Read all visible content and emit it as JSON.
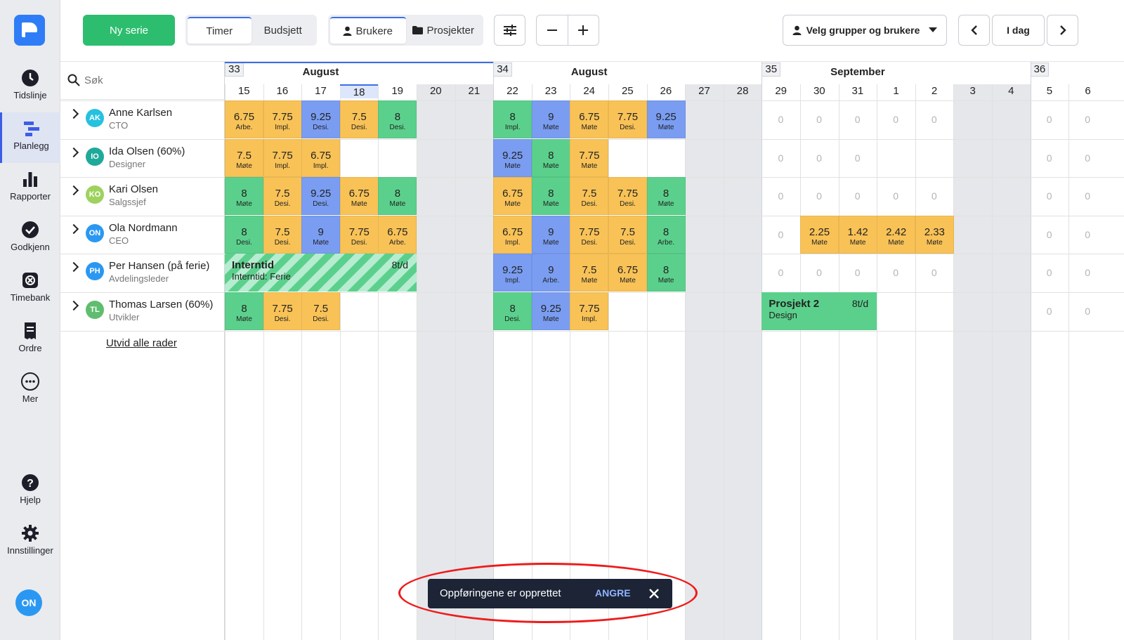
{
  "sidebar": {
    "items": [
      {
        "label": "Tidslinje",
        "icon": "clock-icon",
        "active": false
      },
      {
        "label": "Planlegg",
        "icon": "planner-icon",
        "active": true
      },
      {
        "label": "Rapporter",
        "icon": "bar-chart-icon",
        "active": false
      },
      {
        "label": "Godkjenn",
        "icon": "checkmark-icon",
        "active": false
      },
      {
        "label": "Timebank",
        "icon": "timebank-icon",
        "active": false
      },
      {
        "label": "Ordre",
        "icon": "receipt-icon",
        "active": false
      },
      {
        "label": "Mer",
        "icon": "more-icon",
        "active": false
      }
    ],
    "bottom": [
      {
        "label": "Hjelp",
        "icon": "help-icon"
      },
      {
        "label": "Innstillinger",
        "icon": "gear-icon"
      }
    ],
    "user_initials": "ON"
  },
  "toolbar": {
    "new_series": "Ny serie",
    "view_toggle": [
      {
        "label": "Timer",
        "selected": true
      },
      {
        "label": "Budsjett",
        "selected": false
      }
    ],
    "mode_toggle": [
      {
        "label": "Brukere",
        "selected": true
      },
      {
        "label": "Prosjekter",
        "selected": false
      }
    ],
    "groups_select": "Velg grupper og brukere",
    "today": "I dag"
  },
  "search": {
    "placeholder": "Søk"
  },
  "timeline": {
    "weeks": [
      {
        "number": "33",
        "month": "August"
      },
      {
        "number": "34",
        "month": "August"
      },
      {
        "number": "35",
        "month": "September"
      },
      {
        "number": "36",
        "month": ""
      }
    ],
    "days": [
      "15",
      "16",
      "17",
      "18",
      "19",
      "20",
      "21",
      "22",
      "23",
      "24",
      "25",
      "26",
      "27",
      "28",
      "29",
      "30",
      "31",
      "1",
      "2",
      "3",
      "4",
      "5",
      "6"
    ],
    "weekend_indices": [
      5,
      6,
      12,
      13,
      19,
      20
    ],
    "today_index": 3
  },
  "colors": {
    "yellow": "#f8c257",
    "green": "#5bd08c",
    "blue": "#7a9df2",
    "accent": "#3c6fe6",
    "primary_button": "#2dbd6e"
  },
  "people": [
    {
      "initials": "AK",
      "name": "Anne Karlsen",
      "role": "CTO",
      "avatar_color": "#26c1df"
    },
    {
      "initials": "IO",
      "name": "Ida Olsen (60%)",
      "role": "Designer",
      "avatar_color": "#1fa99b"
    },
    {
      "initials": "KO",
      "name": "Kari Olsen",
      "role": "Salgssjef",
      "avatar_color": "#9ed25e"
    },
    {
      "initials": "ON",
      "name": "Ola Nordmann",
      "role": "CEO",
      "avatar_color": "#2a98f2"
    },
    {
      "initials": "PH",
      "name": "Per Hansen (på ferie)",
      "role": "Avdelingsleder",
      "avatar_color": "#2a98f2"
    },
    {
      "initials": "TL",
      "name": "Thomas Larsen (60%)",
      "role": "Utvikler",
      "avatar_color": "#5fbd6f"
    }
  ],
  "expand_all": "Utvid alle rader",
  "entries": [
    {
      "row": 0,
      "day": 0,
      "hours": "6.75",
      "task": "Arbe.",
      "color": "yellow"
    },
    {
      "row": 0,
      "day": 1,
      "hours": "7.75",
      "task": "Impl.",
      "color": "yellow"
    },
    {
      "row": 0,
      "day": 2,
      "hours": "9.25",
      "task": "Desi.",
      "color": "blue"
    },
    {
      "row": 0,
      "day": 3,
      "hours": "7.5",
      "task": "Desi.",
      "color": "yellow"
    },
    {
      "row": 0,
      "day": 4,
      "hours": "8",
      "task": "Desi.",
      "color": "green"
    },
    {
      "row": 0,
      "day": 7,
      "hours": "8",
      "task": "Impl.",
      "color": "green"
    },
    {
      "row": 0,
      "day": 8,
      "hours": "9",
      "task": "Møte",
      "color": "blue"
    },
    {
      "row": 0,
      "day": 9,
      "hours": "6.75",
      "task": "Møte",
      "color": "yellow"
    },
    {
      "row": 0,
      "day": 10,
      "hours": "7.75",
      "task": "Desi.",
      "color": "yellow"
    },
    {
      "row": 0,
      "day": 11,
      "hours": "9.25",
      "task": "Møte",
      "color": "blue"
    },
    {
      "row": 1,
      "day": 0,
      "hours": "7.5",
      "task": "Møte",
      "color": "yellow"
    },
    {
      "row": 1,
      "day": 1,
      "hours": "7.75",
      "task": "Impl.",
      "color": "yellow"
    },
    {
      "row": 1,
      "day": 2,
      "hours": "6.75",
      "task": "Impl.",
      "color": "yellow"
    },
    {
      "row": 1,
      "day": 7,
      "hours": "9.25",
      "task": "Møte",
      "color": "blue"
    },
    {
      "row": 1,
      "day": 8,
      "hours": "8",
      "task": "Møte",
      "color": "green"
    },
    {
      "row": 1,
      "day": 9,
      "hours": "7.75",
      "task": "Møte",
      "color": "yellow"
    },
    {
      "row": 2,
      "day": 0,
      "hours": "8",
      "task": "Møte",
      "color": "green"
    },
    {
      "row": 2,
      "day": 1,
      "hours": "7.5",
      "task": "Desi.",
      "color": "yellow"
    },
    {
      "row": 2,
      "day": 2,
      "hours": "9.25",
      "task": "Desi.",
      "color": "blue"
    },
    {
      "row": 2,
      "day": 3,
      "hours": "6.75",
      "task": "Møte",
      "color": "yellow"
    },
    {
      "row": 2,
      "day": 4,
      "hours": "8",
      "task": "Møte",
      "color": "green"
    },
    {
      "row": 2,
      "day": 7,
      "hours": "6.75",
      "task": "Møte",
      "color": "yellow"
    },
    {
      "row": 2,
      "day": 8,
      "hours": "8",
      "task": "Møte",
      "color": "green"
    },
    {
      "row": 2,
      "day": 9,
      "hours": "7.5",
      "task": "Desi.",
      "color": "yellow"
    },
    {
      "row": 2,
      "day": 10,
      "hours": "7.75",
      "task": "Desi.",
      "color": "yellow"
    },
    {
      "row": 2,
      "day": 11,
      "hours": "8",
      "task": "Møte",
      "color": "green"
    },
    {
      "row": 3,
      "day": 0,
      "hours": "8",
      "task": "Desi.",
      "color": "green"
    },
    {
      "row": 3,
      "day": 1,
      "hours": "7.5",
      "task": "Desi.",
      "color": "yellow"
    },
    {
      "row": 3,
      "day": 2,
      "hours": "9",
      "task": "Møte",
      "color": "blue"
    },
    {
      "row": 3,
      "day": 3,
      "hours": "7.75",
      "task": "Desi.",
      "color": "yellow"
    },
    {
      "row": 3,
      "day": 4,
      "hours": "6.75",
      "task": "Arbe.",
      "color": "yellow"
    },
    {
      "row": 3,
      "day": 7,
      "hours": "6.75",
      "task": "Impl.",
      "color": "yellow"
    },
    {
      "row": 3,
      "day": 8,
      "hours": "9",
      "task": "Møte",
      "color": "blue"
    },
    {
      "row": 3,
      "day": 9,
      "hours": "7.75",
      "task": "Desi.",
      "color": "yellow"
    },
    {
      "row": 3,
      "day": 10,
      "hours": "7.5",
      "task": "Desi.",
      "color": "yellow"
    },
    {
      "row": 3,
      "day": 11,
      "hours": "8",
      "task": "Arbe.",
      "color": "green"
    },
    {
      "row": 3,
      "day": 15,
      "hours": "2.25",
      "task": "Møte",
      "color": "yellow"
    },
    {
      "row": 3,
      "day": 16,
      "hours": "1.42",
      "task": "Møte",
      "color": "yellow"
    },
    {
      "row": 3,
      "day": 17,
      "hours": "2.42",
      "task": "Møte",
      "color": "yellow"
    },
    {
      "row": 3,
      "day": 18,
      "hours": "2.33",
      "task": "Møte",
      "color": "yellow"
    },
    {
      "row": 4,
      "day": 7,
      "hours": "9.25",
      "task": "Impl.",
      "color": "blue"
    },
    {
      "row": 4,
      "day": 8,
      "hours": "9",
      "task": "Arbe.",
      "color": "blue"
    },
    {
      "row": 4,
      "day": 9,
      "hours": "7.5",
      "task": "Møte",
      "color": "yellow"
    },
    {
      "row": 4,
      "day": 10,
      "hours": "6.75",
      "task": "Møte",
      "color": "yellow"
    },
    {
      "row": 4,
      "day": 11,
      "hours": "8",
      "task": "Møte",
      "color": "green"
    },
    {
      "row": 5,
      "day": 0,
      "hours": "8",
      "task": "Møte",
      "color": "green"
    },
    {
      "row": 5,
      "day": 1,
      "hours": "7.75",
      "task": "Desi.",
      "color": "yellow"
    },
    {
      "row": 5,
      "day": 2,
      "hours": "7.5",
      "task": "Desi.",
      "color": "yellow"
    },
    {
      "row": 5,
      "day": 7,
      "hours": "8",
      "task": "Desi.",
      "color": "green"
    },
    {
      "row": 5,
      "day": 8,
      "hours": "9.25",
      "task": "Møte",
      "color": "blue"
    },
    {
      "row": 5,
      "day": 9,
      "hours": "7.75",
      "task": "Impl.",
      "color": "yellow"
    }
  ],
  "zeros": [
    {
      "row": 0,
      "days": [
        14,
        15,
        16,
        17,
        18,
        21,
        22
      ]
    },
    {
      "row": 1,
      "days": [
        14,
        15,
        16,
        21,
        22
      ]
    },
    {
      "row": 2,
      "days": [
        14,
        15,
        16,
        17,
        18,
        21,
        22
      ]
    },
    {
      "row": 3,
      "days": [
        14,
        21,
        22
      ]
    },
    {
      "row": 4,
      "days": [
        14,
        15,
        16,
        17,
        18,
        21,
        22
      ]
    },
    {
      "row": 5,
      "days": [
        21,
        22
      ]
    }
  ],
  "spans": [
    {
      "row": 4,
      "start": 0,
      "length": 5,
      "title": "Interntid",
      "subtitle": "Interntid: Ferie",
      "rate": "8t/d",
      "style": "striped"
    },
    {
      "row": 5,
      "start": 14,
      "length": 3,
      "title": "Prosjekt 2",
      "subtitle": "Design",
      "rate": "8t/d",
      "style": "solid"
    }
  ],
  "toast": {
    "message": "Oppføringene er opprettet",
    "undo": "ANGRE"
  }
}
